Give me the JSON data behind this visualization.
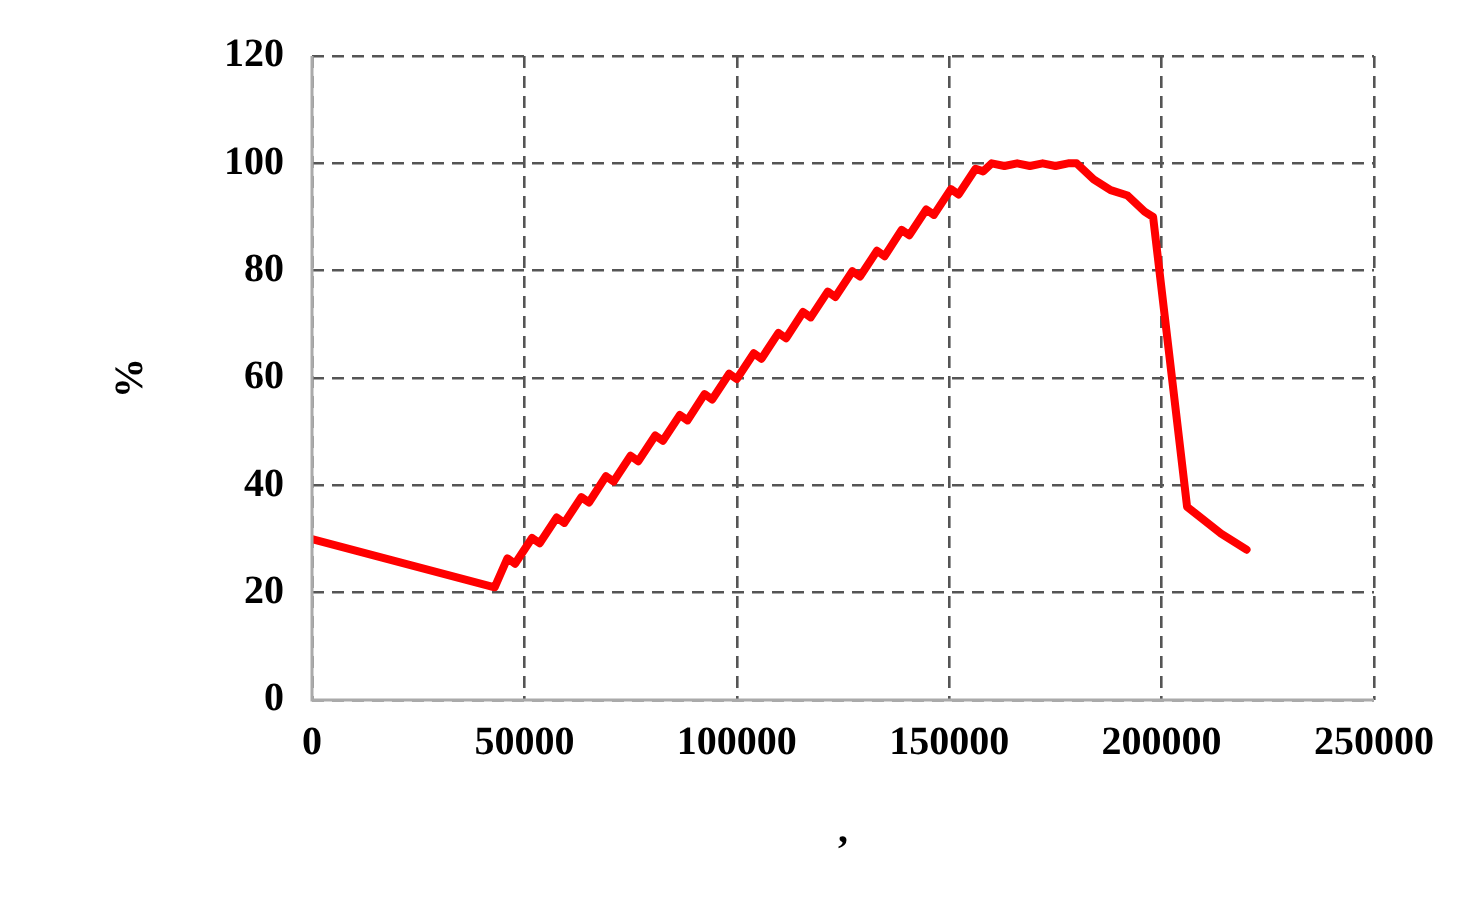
{
  "chart_data": {
    "type": "line",
    "xlabel": ",",
    "ylabel": "%",
    "series": [
      {
        "color": "#ff0000",
        "x": [
          0,
          43000,
          46000,
          47800,
          51800,
          53600,
          57600,
          59400,
          63400,
          65200,
          69200,
          71000,
          75000,
          76800,
          80800,
          82600,
          86600,
          88400,
          92400,
          94200,
          98200,
          100000,
          104000,
          105800,
          109800,
          111600,
          115600,
          117400,
          121400,
          123200,
          127200,
          129000,
          133000,
          134800,
          138800,
          140600,
          144600,
          146400,
          150400,
          152200,
          156200,
          158000,
          160000,
          163000,
          166000,
          169000,
          172000,
          175000,
          178000,
          180000,
          184000,
          188000,
          192000,
          196000,
          198000,
          206000,
          214000,
          220000
        ],
        "values": [
          30,
          21,
          26.4,
          25.4,
          30.2,
          29.2,
          34.0,
          33.0,
          37.8,
          36.8,
          41.7,
          40.7,
          45.5,
          44.5,
          49.3,
          48.3,
          53.1,
          52.1,
          57.0,
          56.0,
          60.8,
          59.8,
          64.6,
          63.6,
          68.4,
          67.4,
          72.3,
          71.3,
          76.1,
          75.1,
          79.9,
          78.9,
          83.7,
          82.7,
          87.6,
          86.6,
          91.4,
          90.4,
          95.2,
          94.2,
          99,
          98.5,
          100,
          99.5,
          100,
          99.5,
          100,
          99.5,
          100,
          100,
          97,
          95,
          94,
          91,
          90,
          36,
          31,
          28
        ]
      }
    ],
    "xlim": [
      0,
      250000
    ],
    "xticks": [
      0,
      50000,
      100000,
      150000,
      200000,
      250000
    ],
    "ylim": [
      0,
      120
    ],
    "yticks": [
      0,
      20,
      40,
      60,
      80,
      100,
      120
    ],
    "grid": true,
    "line_style": "solid",
    "marker": "none",
    "legend": false
  }
}
